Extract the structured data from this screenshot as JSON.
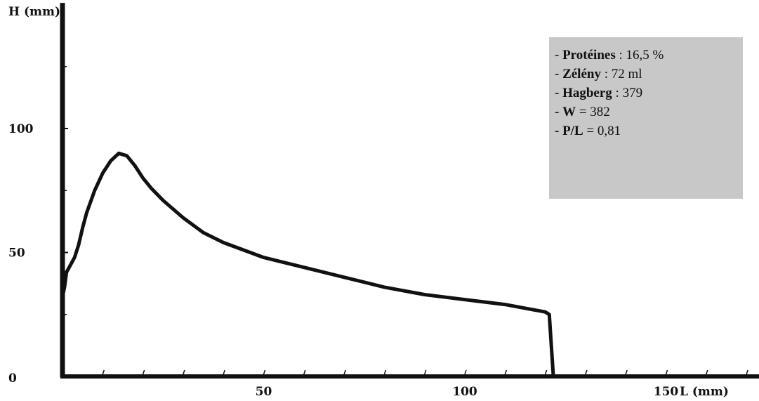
{
  "chart_data": {
    "type": "line",
    "title": "",
    "xlabel": "L (mm)",
    "ylabel": "H (mm)",
    "xlim": [
      0,
      175
    ],
    "ylim": [
      0,
      145
    ],
    "x_ticks": [
      50,
      100,
      150
    ],
    "y_ticks": [
      0,
      50,
      100
    ],
    "grid": false,
    "line_color": "#111111",
    "series": [
      {
        "x": [
          0,
          0.5,
          1,
          2,
          3,
          4,
          5,
          6,
          8,
          10,
          12,
          14,
          16,
          18,
          20,
          22,
          25,
          30,
          35,
          40,
          50,
          60,
          70,
          80,
          90,
          100,
          110,
          115,
          120,
          121,
          122
        ],
        "y": [
          32,
          36,
          42,
          45,
          48,
          53,
          60,
          66,
          75,
          82,
          87,
          90,
          89,
          85,
          80,
          76,
          71,
          64,
          58,
          54,
          48,
          44,
          40,
          36,
          33,
          31,
          29,
          27.5,
          26,
          25,
          0
        ]
      }
    ]
  },
  "info_box": {
    "lines": [
      {
        "label": "Protéines",
        "value": " : 16,5 %"
      },
      {
        "label": "Zélény",
        "value": " : 72 ml"
      },
      {
        "label": "Hagberg",
        "value": " : 379"
      },
      {
        "label": "W",
        "value": " = 382"
      },
      {
        "label": "P/L",
        "value": " = 0,81"
      }
    ]
  }
}
